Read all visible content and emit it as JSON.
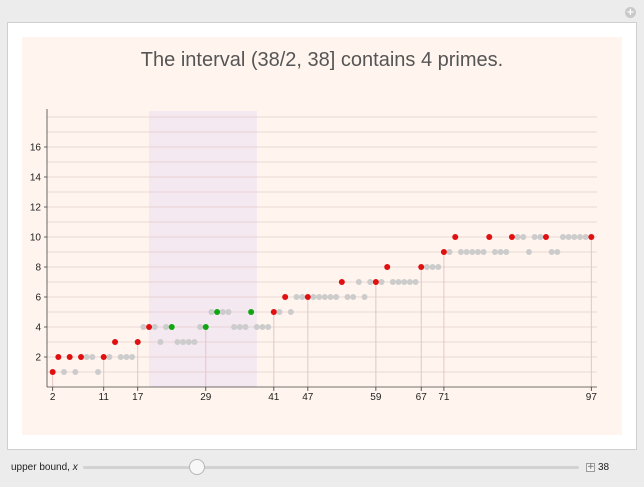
{
  "title": "The interval (38/2, 38] contains 4 primes.",
  "control": {
    "label": "upper bound,",
    "variable": "x",
    "value": "38",
    "slider_fraction": 0.23,
    "add_glyph": "+"
  },
  "colors": {
    "prime": "#e01010",
    "interval_prime": "#11a611",
    "composite": "#cccccc",
    "band": "#f4e8f1",
    "plot_background": "#fff5ee"
  },
  "chart_data": {
    "type": "scatter",
    "title": "The interval (38/2, 38] contains 4 primes.",
    "xlabel": "",
    "ylabel": "",
    "xlim": [
      1,
      98
    ],
    "ylim": [
      0,
      18
    ],
    "highlight_interval": [
      19,
      38
    ],
    "x_ticks": [
      "2",
      "11",
      "17",
      "29",
      "41",
      "47",
      "59",
      "67",
      "71",
      "97"
    ],
    "y_ticks": [
      "2",
      "4",
      "6",
      "8",
      "10",
      "12",
      "14",
      "16"
    ],
    "vertical_marker_x": [
      2,
      11,
      17,
      29,
      41,
      47,
      59,
      67,
      71,
      97
    ],
    "series": [
      {
        "name": "",
        "role": "composite",
        "x": [
          4,
          6,
          8,
          9,
          10,
          12,
          14,
          15,
          16,
          18,
          20,
          21,
          22,
          24,
          25,
          26,
          27,
          28,
          30,
          32,
          33,
          34,
          35,
          36,
          38,
          39,
          40,
          42,
          44,
          45,
          46,
          48,
          49,
          50,
          51,
          52,
          54,
          55,
          56,
          57,
          58,
          60,
          62,
          63,
          64,
          65,
          66,
          68,
          69,
          70,
          72,
          74,
          75,
          76,
          77,
          78,
          80,
          81,
          82,
          84,
          85,
          86,
          87,
          88,
          90,
          91,
          92,
          93,
          94,
          95,
          96
        ],
        "y": [
          1,
          1,
          2,
          2,
          1,
          2,
          2,
          2,
          2,
          4,
          4,
          3,
          4,
          3,
          3,
          3,
          3,
          4,
          5,
          5,
          5,
          4,
          4,
          4,
          4,
          4,
          4,
          5,
          5,
          6,
          6,
          6,
          6,
          6,
          6,
          6,
          6,
          6,
          7,
          6,
          7,
          7,
          7,
          7,
          7,
          7,
          7,
          8,
          8,
          8,
          9,
          9,
          9,
          9,
          9,
          9,
          9,
          9,
          9,
          10,
          10,
          9,
          10,
          10,
          9,
          9,
          10,
          10,
          10,
          10,
          10
        ]
      },
      {
        "name": "",
        "role": "prime",
        "x": [
          2,
          3,
          5,
          7,
          11,
          13,
          17,
          19,
          41,
          43,
          47,
          53,
          59,
          61,
          67,
          71,
          73,
          79,
          83,
          89,
          97
        ],
        "y": [
          1,
          2,
          2,
          2,
          2,
          3,
          3,
          4,
          5,
          6,
          6,
          7,
          7,
          8,
          8,
          9,
          10,
          10,
          10,
          10,
          10
        ]
      },
      {
        "name": "",
        "role": "interval_prime",
        "x": [
          23,
          29,
          31,
          37
        ],
        "y": [
          4,
          4,
          5,
          5
        ]
      }
    ]
  }
}
